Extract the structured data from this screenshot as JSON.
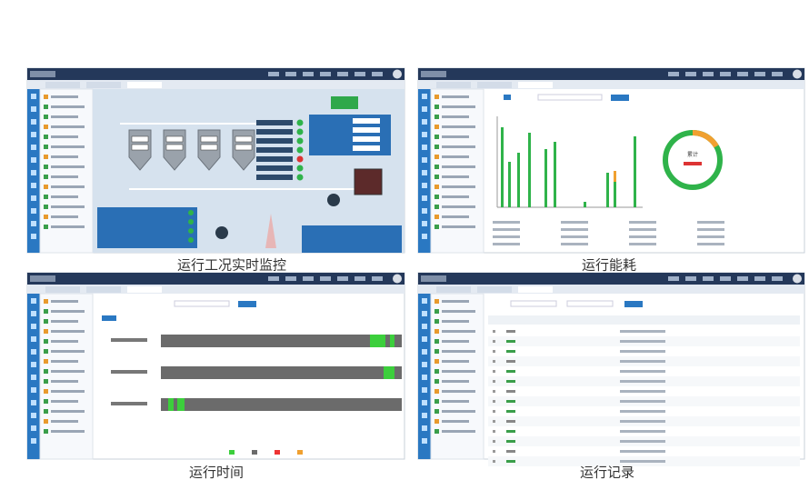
{
  "captions": [
    "运行工况实时监控",
    "运行能耗",
    "运行时间",
    "运行记录"
  ],
  "donut_label": "累计"
}
